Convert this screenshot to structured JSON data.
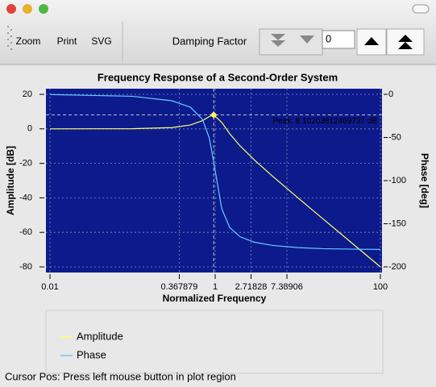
{
  "window": {
    "toolbar": {
      "buttons": [
        "Zoom",
        "Print",
        "SVG"
      ],
      "damping_label": "Damping Factor",
      "damping_value": "0"
    },
    "status": "Cursor Pos: Press left mouse button in plot region"
  },
  "chart_data": {
    "type": "line",
    "title": "Frequency Response of a Second-Order System",
    "xlabel": "Normalized Frequency",
    "ylabel": "Amplitude [dB]",
    "y2label": "Phase [deg]",
    "xscale": "log",
    "x": [
      0.01,
      0.1,
      0.3,
      0.5,
      0.7,
      0.85,
      0.96,
      1.2,
      1.5,
      2,
      3,
      5,
      10,
      20,
      50,
      100
    ],
    "xlim": [
      0.01,
      100
    ],
    "xticks": [
      0.01,
      0.367879,
      1,
      2.71828,
      7.38906,
      100
    ],
    "ylim": [
      -80,
      20
    ],
    "yticks": [
      20,
      0,
      -20,
      -40,
      -60,
      -80
    ],
    "y2lim": [
      -200,
      0
    ],
    "y2ticks": [
      0,
      -50,
      -100,
      -150,
      -200
    ],
    "grid": true,
    "legend": "bottom",
    "annotation": "Peak: 8.10203812469737 dB",
    "series": [
      {
        "name": "Amplitude",
        "color": "#ffff66",
        "values": [
          0,
          0.08,
          0.74,
          2.2,
          4.7,
          7.15,
          8.1,
          3.73,
          -2.84,
          -9.84,
          -18.16,
          -27.63,
          -39.92,
          -52,
          -67.96,
          -80
        ]
      },
      {
        "name": "Phase",
        "color": "#66ccff",
        "axis": "y2",
        "values": [
          -0.23,
          -2.3,
          -7.5,
          -14.9,
          -28.8,
          -50.8,
          -78.5,
          -132.5,
          -154.4,
          -165.1,
          -171.5,
          -175.2,
          -177.7,
          -178.9,
          -179.5,
          -179.8
        ]
      }
    ]
  }
}
